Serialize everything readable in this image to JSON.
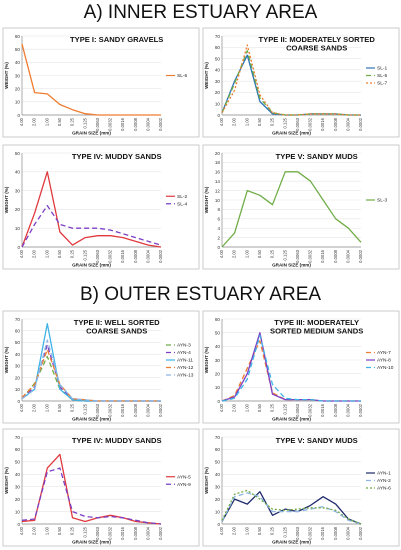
{
  "sections": {
    "inner_title": "A) INNER ESTUARY AREA",
    "outer_title": "B) OUTER ESTUARY AREA"
  },
  "colors": {
    "orange": "#ED7D31",
    "blue": "#2E75B6",
    "green": "#70AD47",
    "red": "#E0393E",
    "purple": "#7B3FC4",
    "cyan": "#3EB3E6",
    "navy": "#1F2A6B",
    "yellow": "#F2B51F",
    "lightblue": "#8DB4E2"
  },
  "shared_axis": {
    "xlabel": "GRAIN SIZE (mm)",
    "ylabel": "WEIGHT (%)",
    "xticks": [
      "4.00",
      "2.00",
      "1.00",
      "0.50",
      "0.25",
      "0.125",
      "0.0063",
      "0.0032",
      "0.0016",
      "0.0008",
      "0.0004",
      "0.0002"
    ]
  },
  "chart_data": [
    {
      "type": "line",
      "title": "TYPE I: SANDY GRAVELS",
      "ylim": [
        0,
        60
      ],
      "yticks": [
        0,
        10,
        20,
        30,
        40,
        50,
        60
      ],
      "legend_position": "right",
      "series": [
        {
          "name": "SL-6",
          "color": "orange",
          "dash": "",
          "values": [
            54,
            17,
            16,
            8,
            4,
            1,
            0,
            0,
            0,
            0,
            0,
            0
          ]
        }
      ]
    },
    {
      "type": "line",
      "title": "TYPE II: MODERATELY SORTED COARSE SANDS",
      "ylim": [
        0,
        70
      ],
      "yticks": [
        0,
        10,
        20,
        30,
        40,
        50,
        60,
        70
      ],
      "legend_position": "right",
      "series": [
        {
          "name": "SL-1",
          "color": "blue",
          "dash": "",
          "values": [
            2,
            30,
            53,
            12,
            1,
            0,
            0,
            1,
            1,
            1,
            0,
            0
          ]
        },
        {
          "name": "SL-5",
          "color": "green",
          "dash": "5,3",
          "values": [
            2,
            28,
            57,
            15,
            2,
            0,
            0,
            1,
            1,
            1,
            0,
            0
          ]
        },
        {
          "name": "SL-7",
          "color": "orange",
          "dash": "2,2",
          "values": [
            2,
            22,
            62,
            18,
            2,
            0,
            0,
            1,
            1,
            1,
            0,
            0
          ]
        }
      ]
    },
    {
      "type": "line",
      "title": "TYPE IV: MUDDY SANDS",
      "ylim": [
        0,
        50
      ],
      "yticks": [
        0,
        10,
        20,
        30,
        40,
        50
      ],
      "legend_position": "right",
      "series": [
        {
          "name": "SL-2",
          "color": "red",
          "dash": "",
          "values": [
            0,
            18,
            40,
            8,
            1,
            5,
            6,
            6,
            5,
            3,
            1,
            0
          ]
        },
        {
          "name": "SL-4",
          "color": "purple",
          "dash": "5,3",
          "values": [
            0,
            12,
            22,
            12,
            10,
            10,
            10,
            9,
            7,
            5,
            3,
            1
          ]
        }
      ]
    },
    {
      "type": "line",
      "title": "TYPE V: SANDY MUDS",
      "ylim": [
        0,
        20
      ],
      "yticks": [
        0,
        2,
        4,
        6,
        8,
        10,
        12,
        14,
        16,
        18,
        20
      ],
      "legend_position": "right",
      "series": [
        {
          "name": "SL-3",
          "color": "green",
          "dash": "",
          "values": [
            0,
            3,
            12,
            11,
            9,
            16,
            16,
            14,
            10,
            6,
            4,
            1
          ]
        }
      ]
    },
    {
      "type": "line",
      "title": "TYPE II: WELL SORTED COARSE SANDS",
      "ylim": [
        0,
        70
      ],
      "yticks": [
        0,
        10,
        20,
        30,
        40,
        50,
        60,
        70
      ],
      "legend_position": "right",
      "series": [
        {
          "name": "AYN-3",
          "color": "green",
          "dash": "5,3",
          "values": [
            2,
            15,
            38,
            10,
            1,
            0,
            0,
            0,
            0,
            0,
            0,
            0
          ]
        },
        {
          "name": "AYN-4",
          "color": "purple",
          "dash": "5,3",
          "values": [
            2,
            12,
            48,
            12,
            1,
            0,
            0,
            0,
            0,
            0,
            0,
            0
          ]
        },
        {
          "name": "AYN-11",
          "color": "cyan",
          "dash": "",
          "values": [
            2,
            10,
            66,
            10,
            1,
            0,
            0,
            0,
            0,
            0,
            0,
            0
          ]
        },
        {
          "name": "AYN-12",
          "color": "orange",
          "dash": "5,3",
          "values": [
            3,
            14,
            44,
            14,
            2,
            1,
            0,
            0,
            0,
            0,
            0,
            0
          ]
        },
        {
          "name": "AYN-13",
          "color": "lightblue",
          "dash": "5,3",
          "values": [
            2,
            10,
            52,
            14,
            2,
            1,
            0,
            0,
            0,
            0,
            0,
            0
          ]
        }
      ]
    },
    {
      "type": "line",
      "title": "TYPE III: MODERATELY SORTED MEDIUM SANDS",
      "ylim": [
        0,
        60
      ],
      "yticks": [
        0,
        10,
        20,
        30,
        40,
        50,
        60
      ],
      "legend_position": "right",
      "series": [
        {
          "name": "AYN-7",
          "color": "orange",
          "dash": "5,3",
          "values": [
            0,
            4,
            24,
            44,
            6,
            1,
            1,
            1,
            0,
            0,
            0,
            0
          ]
        },
        {
          "name": "AYN-8",
          "color": "purple",
          "dash": "",
          "values": [
            0,
            3,
            20,
            50,
            5,
            1,
            1,
            1,
            0,
            0,
            0,
            0
          ]
        },
        {
          "name": "AYN-10",
          "color": "cyan",
          "dash": "5,3",
          "values": [
            0,
            2,
            16,
            48,
            12,
            2,
            1,
            1,
            0,
            0,
            0,
            0
          ]
        }
      ]
    },
    {
      "type": "line",
      "title": "TYPE IV: MUDDY SANDS",
      "ylim": [
        0,
        70
      ],
      "yticks": [
        0,
        10,
        20,
        30,
        40,
        50,
        60,
        70
      ],
      "legend_position": "right",
      "series": [
        {
          "name": "AYN-5",
          "color": "red",
          "dash": "",
          "values": [
            2,
            3,
            45,
            56,
            5,
            2,
            5,
            7,
            5,
            2,
            1,
            0
          ]
        },
        {
          "name": "AYN-9",
          "color": "purple",
          "dash": "5,3",
          "values": [
            3,
            4,
            42,
            45,
            10,
            6,
            5,
            6,
            5,
            3,
            1,
            0
          ]
        }
      ]
    },
    {
      "type": "line",
      "title": "TYPE V: SANDY MUDS",
      "ylim": [
        0,
        70
      ],
      "yticks": [
        0,
        10,
        20,
        30,
        40,
        50,
        60,
        70
      ],
      "legend_position": "right",
      "series": [
        {
          "name": "AYN-1",
          "color": "navy",
          "dash": "",
          "values": [
            2,
            20,
            16,
            26,
            7,
            12,
            10,
            15,
            22,
            16,
            4,
            0
          ]
        },
        {
          "name": "AYN-2",
          "color": "lightblue",
          "dash": "5,3",
          "values": [
            2,
            22,
            25,
            22,
            10,
            10,
            10,
            12,
            14,
            10,
            3,
            0
          ]
        },
        {
          "name": "AYN-6",
          "color": "green",
          "dash": "2,2",
          "values": [
            3,
            24,
            27,
            20,
            12,
            11,
            12,
            13,
            13,
            11,
            4,
            0
          ]
        }
      ]
    }
  ]
}
